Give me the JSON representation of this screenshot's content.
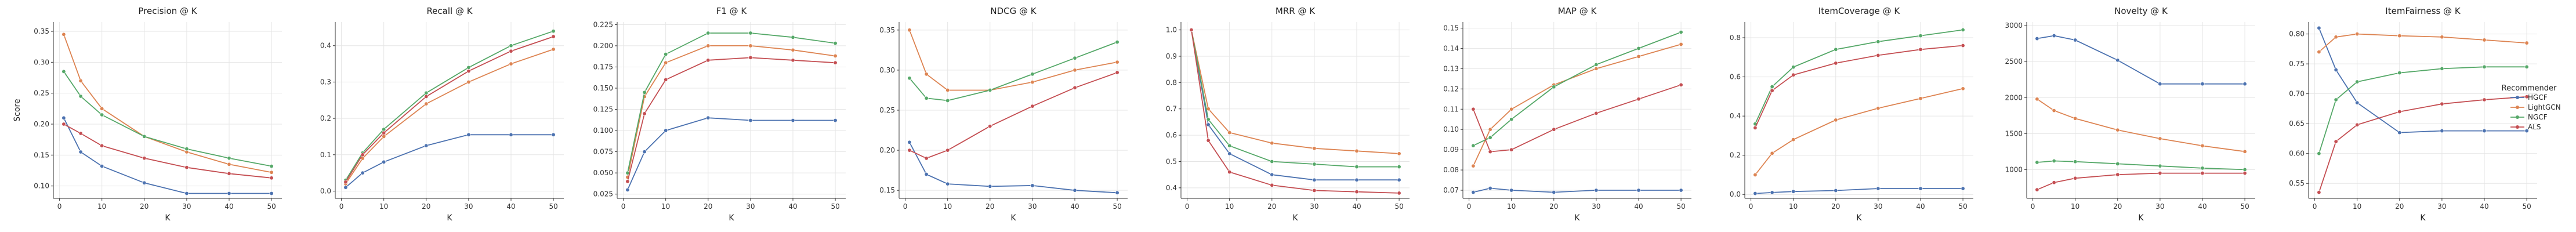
{
  "legend": {
    "title": "Recommender",
    "placement": "right",
    "entries": [
      "HGCF",
      "LightGCN",
      "NGCF",
      "ALS"
    ]
  },
  "colors": {
    "HGCF": "#4c72b0",
    "LightGCN": "#dd8452",
    "NGCF": "#55a868",
    "ALS": "#c44e52"
  },
  "chart_data": [
    {
      "type": "line",
      "title": "Precision @ K",
      "xlabel": "K",
      "ylabel": "Score",
      "x": [
        1,
        5,
        10,
        20,
        30,
        40,
        50
      ],
      "xlim": [
        -1.45,
        52.45
      ],
      "ylim": [
        0.08,
        0.365
      ],
      "yticks": [
        0.1,
        0.15,
        0.2,
        0.25,
        0.3,
        0.35
      ],
      "ytick_labels": [
        "0.10",
        "0.15",
        "0.20",
        "0.25",
        "0.30",
        "0.35"
      ],
      "xticks": [
        0,
        10,
        20,
        30,
        40,
        50
      ],
      "grid": true,
      "series": [
        {
          "name": "HGCF",
          "values": [
            0.21,
            0.155,
            0.132,
            0.105,
            0.088,
            0.088,
            0.088
          ]
        },
        {
          "name": "LightGCN",
          "values": [
            0.345,
            0.27,
            0.225,
            0.18,
            0.155,
            0.135,
            0.122
          ]
        },
        {
          "name": "NGCF",
          "values": [
            0.285,
            0.245,
            0.215,
            0.18,
            0.16,
            0.145,
            0.132
          ]
        },
        {
          "name": "ALS",
          "values": [
            0.2,
            0.185,
            0.165,
            0.145,
            0.13,
            0.12,
            0.113
          ]
        }
      ]
    },
    {
      "type": "line",
      "title": "Recall @ K",
      "xlabel": "K",
      "ylabel": "",
      "x": [
        1,
        5,
        10,
        20,
        30,
        40,
        50
      ],
      "xlim": [
        -1.45,
        52.45
      ],
      "ylim": [
        -0.02,
        0.465
      ],
      "yticks": [
        0.0,
        0.1,
        0.2,
        0.3,
        0.4
      ],
      "ytick_labels": [
        "0.0",
        "0.1",
        "0.2",
        "0.3",
        "0.4"
      ],
      "xticks": [
        0,
        10,
        20,
        30,
        40,
        50
      ],
      "grid": true,
      "series": [
        {
          "name": "HGCF",
          "values": [
            0.01,
            0.05,
            0.08,
            0.125,
            0.155,
            0.155,
            0.155
          ]
        },
        {
          "name": "LightGCN",
          "values": [
            0.02,
            0.09,
            0.15,
            0.24,
            0.3,
            0.35,
            0.39
          ]
        },
        {
          "name": "NGCF",
          "values": [
            0.03,
            0.105,
            0.17,
            0.27,
            0.34,
            0.4,
            0.44
          ]
        },
        {
          "name": "ALS",
          "values": [
            0.025,
            0.1,
            0.16,
            0.26,
            0.33,
            0.385,
            0.425
          ]
        }
      ]
    },
    {
      "type": "line",
      "title": "F1 @ K",
      "xlabel": "K",
      "ylabel": "",
      "x": [
        1,
        5,
        10,
        20,
        30,
        40,
        50
      ],
      "xlim": [
        -1.45,
        52.45
      ],
      "ylim": [
        0.02,
        0.228
      ],
      "yticks": [
        0.025,
        0.05,
        0.075,
        0.1,
        0.125,
        0.15,
        0.175,
        0.2,
        0.225
      ],
      "ytick_labels": [
        "0.025",
        "0.050",
        "0.075",
        "0.100",
        "0.125",
        "0.150",
        "0.175",
        "0.200",
        "0.225"
      ],
      "xticks": [
        0,
        10,
        20,
        30,
        40,
        50
      ],
      "grid": true,
      "series": [
        {
          "name": "HGCF",
          "values": [
            0.03,
            0.075,
            0.1,
            0.115,
            0.112,
            0.112,
            0.112
          ]
        },
        {
          "name": "LightGCN",
          "values": [
            0.045,
            0.14,
            0.18,
            0.2,
            0.2,
            0.195,
            0.188
          ]
        },
        {
          "name": "NGCF",
          "values": [
            0.05,
            0.145,
            0.19,
            0.215,
            0.215,
            0.21,
            0.203
          ]
        },
        {
          "name": "ALS",
          "values": [
            0.04,
            0.12,
            0.16,
            0.183,
            0.186,
            0.183,
            0.18
          ]
        }
      ]
    },
    {
      "type": "line",
      "title": "NDCG @ K",
      "xlabel": "K",
      "ylabel": "",
      "x": [
        1,
        5,
        10,
        20,
        30,
        40,
        50
      ],
      "xlim": [
        -1.45,
        52.45
      ],
      "ylim": [
        0.14,
        0.36
      ],
      "yticks": [
        0.15,
        0.2,
        0.25,
        0.3,
        0.35
      ],
      "ytick_labels": [
        "0.15",
        "0.20",
        "0.25",
        "0.30",
        "0.35"
      ],
      "xticks": [
        0,
        10,
        20,
        30,
        40,
        50
      ],
      "grid": true,
      "series": [
        {
          "name": "HGCF",
          "values": [
            0.21,
            0.17,
            0.158,
            0.155,
            0.156,
            0.15,
            0.147
          ]
        },
        {
          "name": "LightGCN",
          "values": [
            0.35,
            0.295,
            0.275,
            0.275,
            0.285,
            0.3,
            0.31
          ]
        },
        {
          "name": "NGCF",
          "values": [
            0.29,
            0.265,
            0.262,
            0.275,
            0.295,
            0.315,
            0.335
          ]
        },
        {
          "name": "ALS",
          "values": [
            0.2,
            0.19,
            0.2,
            0.23,
            0.255,
            0.278,
            0.297
          ]
        }
      ]
    },
    {
      "type": "line",
      "title": "MRR @ K",
      "xlabel": "K",
      "ylabel": "",
      "x": [
        1,
        5,
        10,
        20,
        30,
        40,
        50
      ],
      "xlim": [
        -1.45,
        52.45
      ],
      "ylim": [
        0.36,
        1.03
      ],
      "yticks": [
        0.4,
        0.5,
        0.6,
        0.7,
        0.8,
        0.9,
        1.0
      ],
      "ytick_labels": [
        "0.4",
        "0.5",
        "0.6",
        "0.7",
        "0.8",
        "0.9",
        "1.0"
      ],
      "xticks": [
        0,
        10,
        20,
        30,
        40,
        50
      ],
      "grid": true,
      "series": [
        {
          "name": "HGCF",
          "values": [
            1.0,
            0.64,
            0.53,
            0.45,
            0.43,
            0.43,
            0.43
          ]
        },
        {
          "name": "LightGCN",
          "values": [
            1.0,
            0.7,
            0.61,
            0.57,
            0.55,
            0.54,
            0.53
          ]
        },
        {
          "name": "NGCF",
          "values": [
            1.0,
            0.66,
            0.56,
            0.5,
            0.49,
            0.48,
            0.48
          ]
        },
        {
          "name": "ALS",
          "values": [
            1.0,
            0.58,
            0.46,
            0.41,
            0.39,
            0.385,
            0.38
          ]
        }
      ]
    },
    {
      "type": "line",
      "title": "MAP @ K",
      "xlabel": "K",
      "ylabel": "",
      "x": [
        1,
        5,
        10,
        20,
        30,
        40,
        50
      ],
      "xlim": [
        -1.45,
        52.45
      ],
      "ylim": [
        0.066,
        0.153
      ],
      "yticks": [
        0.07,
        0.08,
        0.09,
        0.1,
        0.11,
        0.12,
        0.13,
        0.14,
        0.15
      ],
      "ytick_labels": [
        "0.07",
        "0.08",
        "0.09",
        "0.10",
        "0.11",
        "0.12",
        "0.13",
        "0.14",
        "0.15"
      ],
      "xticks": [
        0,
        10,
        20,
        30,
        40,
        50
      ],
      "grid": true,
      "series": [
        {
          "name": "HGCF",
          "values": [
            0.069,
            0.071,
            0.07,
            0.069,
            0.07,
            0.07,
            0.07
          ]
        },
        {
          "name": "LightGCN",
          "values": [
            0.082,
            0.1,
            0.11,
            0.122,
            0.13,
            0.136,
            0.142
          ]
        },
        {
          "name": "NGCF",
          "values": [
            0.092,
            0.096,
            0.105,
            0.121,
            0.132,
            0.14,
            0.148
          ]
        },
        {
          "name": "ALS",
          "values": [
            0.11,
            0.089,
            0.09,
            0.1,
            0.108,
            0.115,
            0.122
          ]
        }
      ]
    },
    {
      "type": "line",
      "title": "ItemCoverage @ K",
      "xlabel": "K",
      "ylabel": "",
      "x": [
        1,
        5,
        10,
        20,
        30,
        40,
        50
      ],
      "xlim": [
        -1.45,
        52.45
      ],
      "ylim": [
        -0.02,
        0.88
      ],
      "yticks": [
        0.0,
        0.2,
        0.4,
        0.6,
        0.8
      ],
      "ytick_labels": [
        "0.0",
        "0.2",
        "0.4",
        "0.6",
        "0.8"
      ],
      "xticks": [
        0,
        10,
        20,
        30,
        40,
        50
      ],
      "grid": true,
      "series": [
        {
          "name": "HGCF",
          "values": [
            0.005,
            0.01,
            0.015,
            0.02,
            0.03,
            0.03,
            0.03
          ]
        },
        {
          "name": "LightGCN",
          "values": [
            0.1,
            0.21,
            0.28,
            0.38,
            0.44,
            0.49,
            0.54
          ]
        },
        {
          "name": "NGCF",
          "values": [
            0.36,
            0.55,
            0.65,
            0.74,
            0.78,
            0.81,
            0.84
          ]
        },
        {
          "name": "ALS",
          "values": [
            0.34,
            0.53,
            0.61,
            0.67,
            0.71,
            0.74,
            0.76
          ]
        }
      ]
    },
    {
      "type": "line",
      "title": "Novelty @ K",
      "xlabel": "K",
      "ylabel": "",
      "x": [
        1,
        5,
        10,
        20,
        30,
        40,
        50
      ],
      "xlim": [
        -1.45,
        52.45
      ],
      "ylim": [
        600,
        3050
      ],
      "yticks": [
        1000,
        1500,
        2000,
        2500,
        3000
      ],
      "ytick_labels": [
        "1000",
        "1500",
        "2000",
        "2500",
        "3000"
      ],
      "xticks": [
        0,
        10,
        20,
        30,
        40,
        50
      ],
      "grid": true,
      "series": [
        {
          "name": "HGCF",
          "values": [
            2820,
            2860,
            2800,
            2520,
            2190,
            2190,
            2190
          ]
        },
        {
          "name": "LightGCN",
          "values": [
            1980,
            1820,
            1710,
            1550,
            1430,
            1330,
            1250
          ]
        },
        {
          "name": "NGCF",
          "values": [
            1100,
            1120,
            1110,
            1080,
            1050,
            1020,
            1000
          ]
        },
        {
          "name": "ALS",
          "values": [
            720,
            820,
            880,
            930,
            950,
            950,
            950
          ]
        }
      ]
    },
    {
      "type": "line",
      "title": "ItemFairness @ K",
      "xlabel": "K",
      "ylabel": "",
      "x": [
        1,
        5,
        10,
        20,
        30,
        40,
        50
      ],
      "xlim": [
        -1.45,
        52.45
      ],
      "ylim": [
        0.525,
        0.82
      ],
      "yticks": [
        0.55,
        0.6,
        0.65,
        0.7,
        0.75,
        0.8
      ],
      "ytick_labels": [
        "0.55",
        "0.60",
        "0.65",
        "0.70",
        "0.75",
        "0.80"
      ],
      "xticks": [
        0,
        10,
        20,
        30,
        40,
        50
      ],
      "grid": true,
      "series": [
        {
          "name": "HGCF",
          "values": [
            0.81,
            0.74,
            0.685,
            0.635,
            0.638,
            0.638,
            0.638
          ]
        },
        {
          "name": "LightGCN",
          "values": [
            0.77,
            0.795,
            0.8,
            0.797,
            0.795,
            0.79,
            0.785
          ]
        },
        {
          "name": "NGCF",
          "values": [
            0.6,
            0.69,
            0.72,
            0.735,
            0.742,
            0.745,
            0.745
          ]
        },
        {
          "name": "ALS",
          "values": [
            0.535,
            0.62,
            0.648,
            0.67,
            0.683,
            0.69,
            0.695
          ]
        }
      ]
    }
  ]
}
